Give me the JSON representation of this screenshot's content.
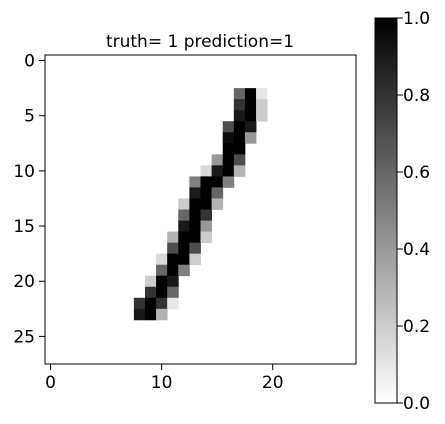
{
  "chart_data": {
    "type": "heatmap",
    "title": "truth= 1 prediction=1",
    "grid": false,
    "colormap": "gray_r",
    "rows": 28,
    "cols": 28,
    "x_ticks": [
      0,
      10,
      20
    ],
    "x_tick_labels": [
      "0",
      "10",
      "20"
    ],
    "y_ticks": [
      0,
      5,
      10,
      15,
      20,
      25
    ],
    "y_tick_labels": [
      "0",
      "5",
      "10",
      "15",
      "20",
      "25"
    ],
    "colorbar": {
      "range": [
        0,
        1
      ],
      "ticks": [
        0.0,
        0.2,
        0.4,
        0.6,
        0.8,
        1.0
      ],
      "tick_labels": [
        "0.0",
        "0.2",
        "0.4",
        "0.6",
        "0.8",
        "1.0"
      ]
    },
    "pixels": [
      [
        3,
        17,
        0.6
      ],
      [
        3,
        18,
        1.0
      ],
      [
        3,
        19,
        0.1
      ],
      [
        4,
        17,
        0.8
      ],
      [
        4,
        18,
        1.0
      ],
      [
        4,
        19,
        0.2
      ],
      [
        5,
        17,
        0.9
      ],
      [
        5,
        18,
        1.0
      ],
      [
        5,
        19,
        0.2
      ],
      [
        6,
        16,
        0.7
      ],
      [
        6,
        17,
        1.0
      ],
      [
        6,
        18,
        0.9
      ],
      [
        7,
        16,
        0.95
      ],
      [
        7,
        17,
        1.0
      ],
      [
        7,
        18,
        0.4
      ],
      [
        8,
        16,
        1.0
      ],
      [
        8,
        17,
        1.0
      ],
      [
        9,
        15,
        0.4
      ],
      [
        9,
        16,
        1.0
      ],
      [
        9,
        17,
        0.7
      ],
      [
        10,
        14,
        0.15
      ],
      [
        10,
        15,
        0.9
      ],
      [
        10,
        16,
        1.0
      ],
      [
        10,
        17,
        0.3
      ],
      [
        11,
        13,
        0.5
      ],
      [
        11,
        14,
        1.0
      ],
      [
        11,
        15,
        1.0
      ],
      [
        11,
        16,
        0.5
      ],
      [
        12,
        13,
        0.9
      ],
      [
        12,
        14,
        1.0
      ],
      [
        12,
        15,
        0.6
      ],
      [
        13,
        12,
        0.2
      ],
      [
        13,
        13,
        1.0
      ],
      [
        13,
        14,
        1.0
      ],
      [
        13,
        15,
        0.3
      ],
      [
        14,
        12,
        0.6
      ],
      [
        14,
        13,
        1.0
      ],
      [
        14,
        14,
        0.8
      ],
      [
        15,
        12,
        0.9
      ],
      [
        15,
        13,
        1.0
      ],
      [
        15,
        14,
        0.4
      ],
      [
        16,
        11,
        0.3
      ],
      [
        16,
        12,
        1.0
      ],
      [
        16,
        13,
        1.0
      ],
      [
        16,
        14,
        0.2
      ],
      [
        17,
        11,
        0.7
      ],
      [
        17,
        12,
        1.0
      ],
      [
        17,
        13,
        0.7
      ],
      [
        18,
        10,
        0.15
      ],
      [
        18,
        11,
        1.0
      ],
      [
        18,
        12,
        1.0
      ],
      [
        18,
        13,
        0.2
      ],
      [
        19,
        10,
        0.6
      ],
      [
        19,
        11,
        1.0
      ],
      [
        19,
        12,
        0.5
      ],
      [
        20,
        9,
        0.2
      ],
      [
        20,
        10,
        1.0
      ],
      [
        20,
        11,
        0.9
      ],
      [
        21,
        9,
        0.8
      ],
      [
        21,
        10,
        1.0
      ],
      [
        21,
        11,
        0.6
      ],
      [
        22,
        8,
        0.8
      ],
      [
        22,
        9,
        1.0
      ],
      [
        22,
        10,
        0.8
      ],
      [
        22,
        11,
        0.1
      ],
      [
        23,
        8,
        0.9
      ],
      [
        23,
        9,
        1.0
      ],
      [
        23,
        10,
        0.3
      ]
    ]
  }
}
